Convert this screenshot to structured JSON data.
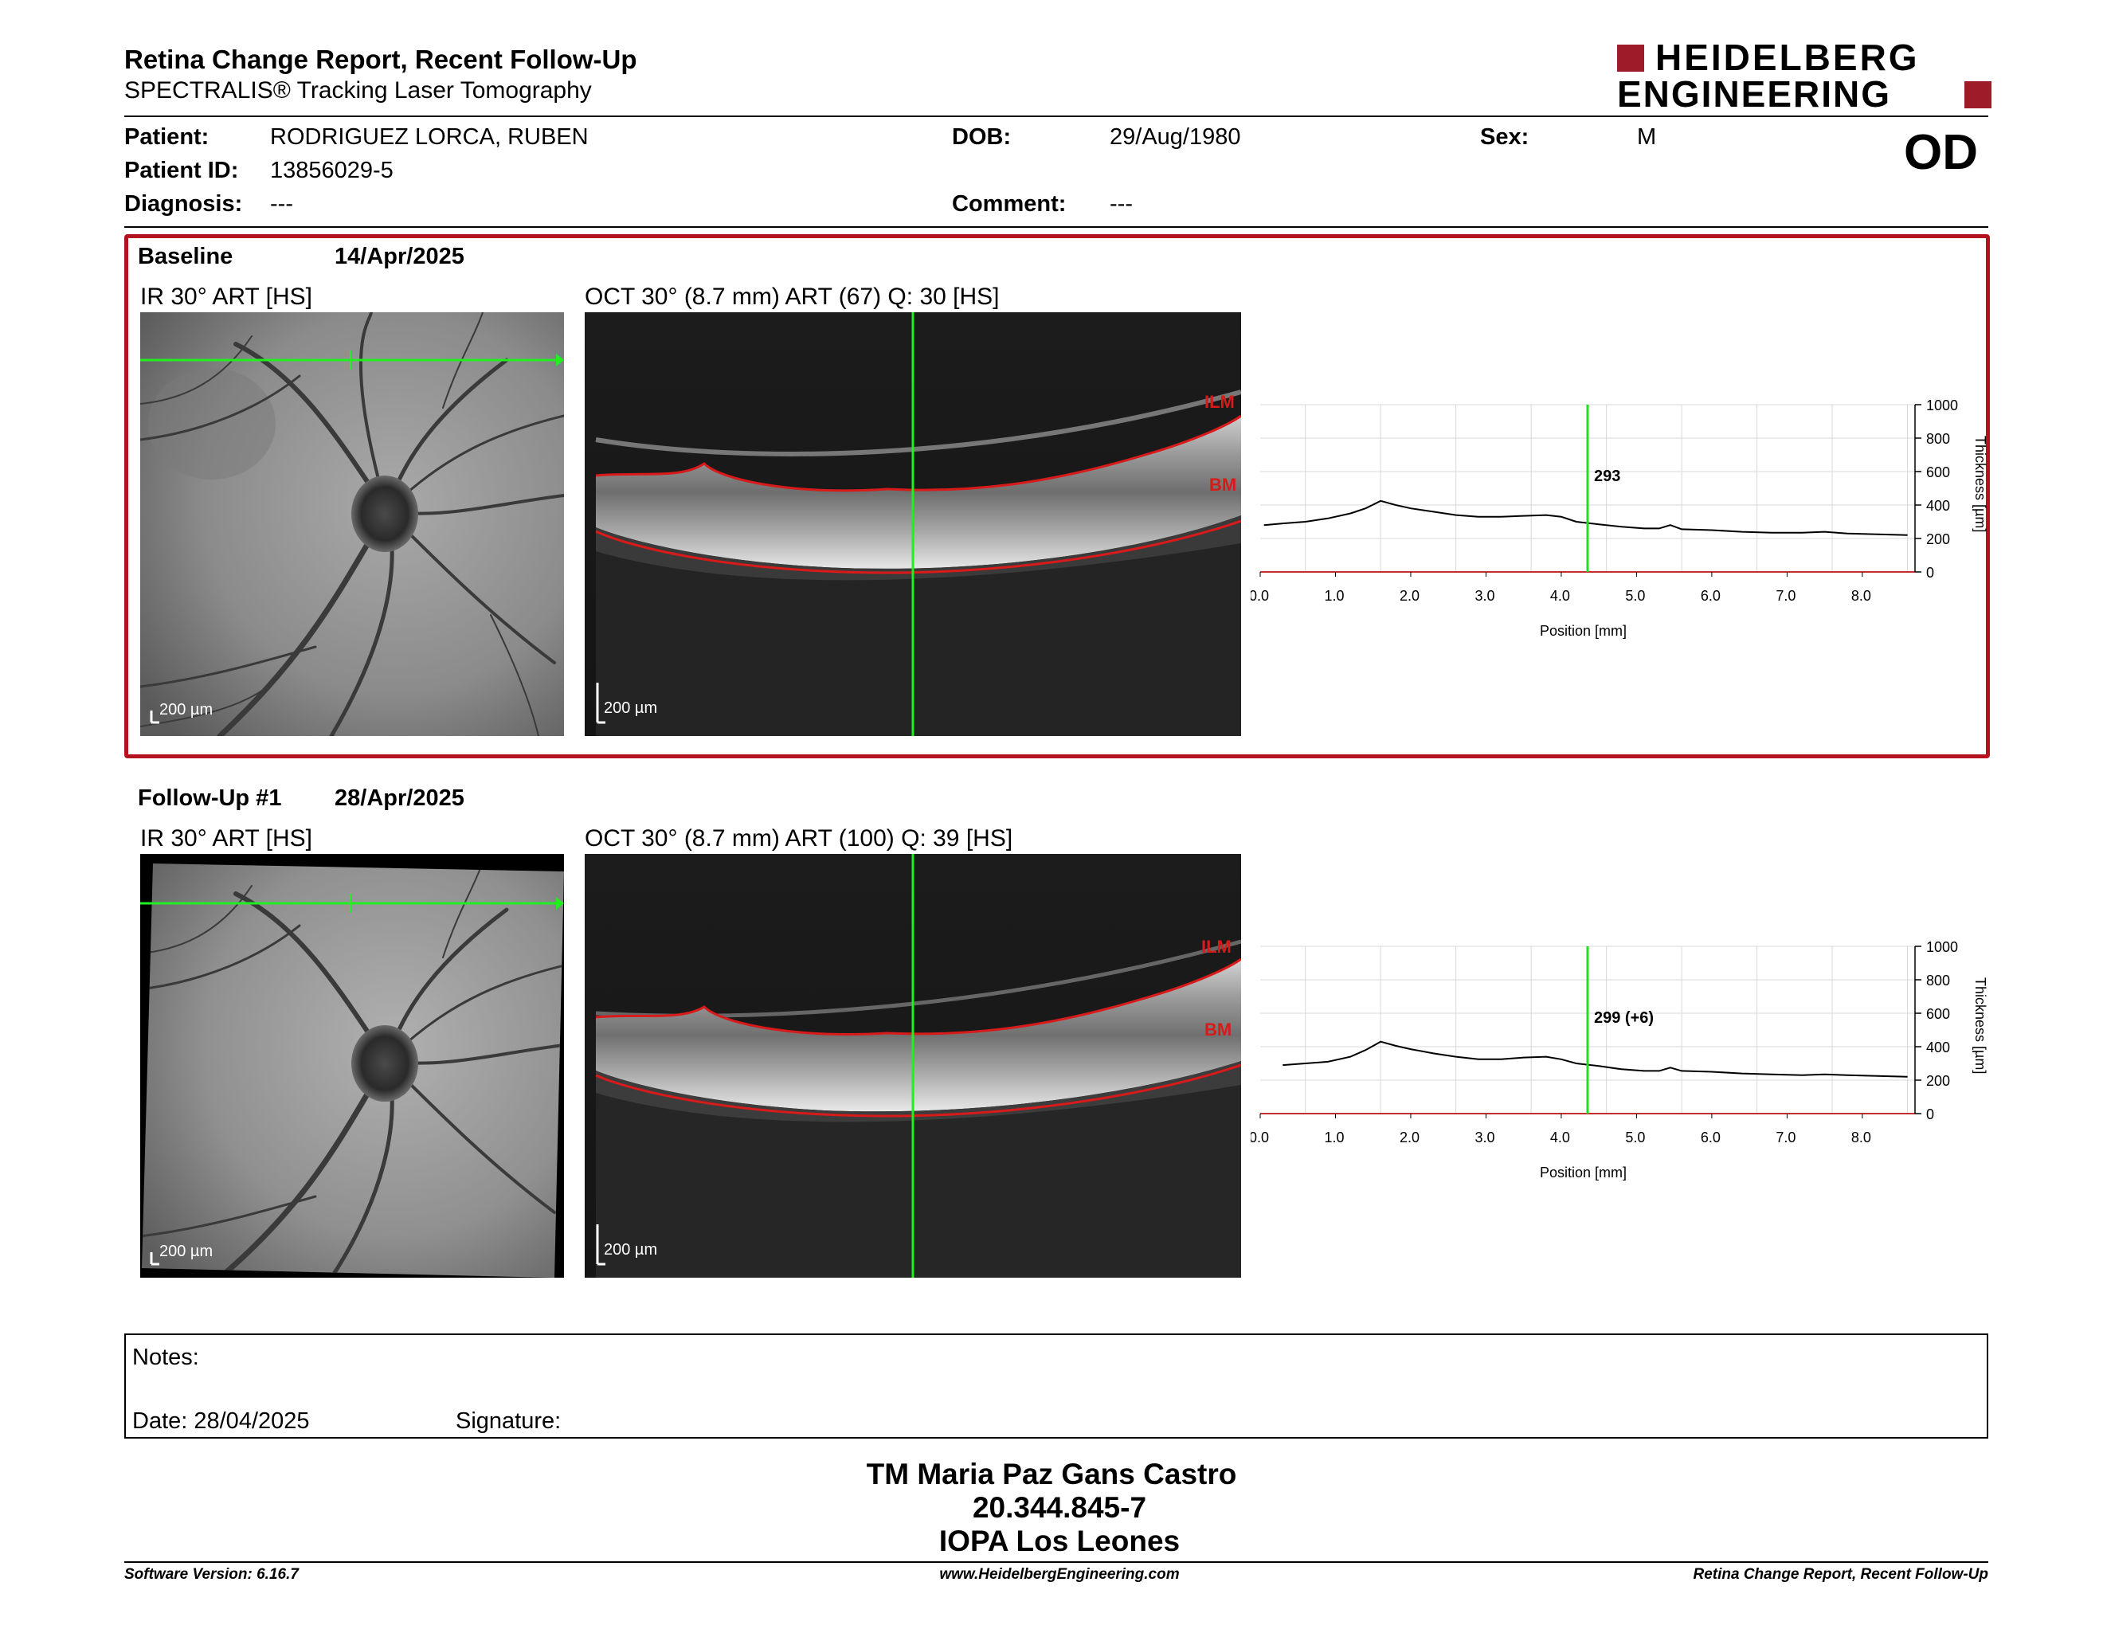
{
  "report": {
    "title": "Retina Change Report, Recent Follow-Up",
    "subtitle": "SPECTRALIS® Tracking Laser Tomography",
    "logo_line1": "HEIDELBERG",
    "logo_line2": "ENGINEERING",
    "brand_color": "#9e1b2a"
  },
  "patient": {
    "patient_label": "Patient:",
    "patient_value": "RODRIGUEZ LORCA, RUBEN",
    "id_label": "Patient ID:",
    "id_value": "13856029-5",
    "diagnosis_label": "Diagnosis:",
    "diagnosis_value": "---",
    "dob_label": "DOB:",
    "dob_value": "29/Aug/1980",
    "comment_label": "Comment:",
    "comment_value": "---",
    "sex_label": "Sex:",
    "sex_value": "M",
    "eye": "OD"
  },
  "baseline": {
    "label": "Baseline",
    "date": "14/Apr/2025",
    "ir_title": "IR 30° ART [HS]",
    "oct_title": "OCT 30° (8.7 mm) ART (67) Q: 30 [HS]",
    "ir_scale": "200 µm",
    "oct_scale": "200 µm",
    "ilm": "ILM",
    "bm": "BM",
    "highlight_color": "#b3121e"
  },
  "followup": {
    "label": "Follow-Up #1",
    "date": "28/Apr/2025",
    "ir_title": "IR 30° ART [HS]",
    "oct_title": "OCT 30° (8.7 mm) ART (100) Q: 39 [HS]",
    "ir_scale": "200 µm",
    "oct_scale": "200 µm",
    "ilm": "ILM",
    "bm": "BM"
  },
  "chart_data": [
    {
      "type": "line",
      "title": "",
      "xlabel": "Position [mm]",
      "ylabel": "Thickness [µm]",
      "xlim": [
        0,
        8.7
      ],
      "ylim": [
        0,
        1000
      ],
      "xticks": [
        "0.0",
        "1.0",
        "2.0",
        "3.0",
        "4.0",
        "5.0",
        "6.0",
        "7.0",
        "8.0"
      ],
      "yticks": [
        "1000",
        "800",
        "600",
        "400",
        "200",
        "0"
      ],
      "grid": true,
      "marker_x": 4.35,
      "marker_label": "293",
      "series": [
        {
          "x": [
            0.05,
            0.3,
            0.6,
            0.9,
            1.2,
            1.4,
            1.6,
            1.8,
            2.0,
            2.3,
            2.6,
            2.9,
            3.2,
            3.5,
            3.8,
            4.0,
            4.2,
            4.5,
            4.8,
            5.1,
            5.3,
            5.45,
            5.6,
            6.0,
            6.4,
            6.8,
            7.2,
            7.5,
            7.8,
            8.2,
            8.6
          ],
          "y": [
            280,
            290,
            300,
            320,
            350,
            380,
            425,
            400,
            380,
            360,
            340,
            330,
            330,
            335,
            340,
            330,
            300,
            285,
            270,
            260,
            260,
            280,
            255,
            250,
            240,
            235,
            235,
            240,
            230,
            225,
            220
          ],
          "color": "#000000"
        }
      ]
    },
    {
      "type": "line",
      "title": "",
      "xlabel": "Position [mm]",
      "ylabel": "Thickness [µm]",
      "xlim": [
        0,
        8.7
      ],
      "ylim": [
        0,
        1000
      ],
      "xticks": [
        "0.0",
        "1.0",
        "2.0",
        "3.0",
        "4.0",
        "5.0",
        "6.0",
        "7.0",
        "8.0"
      ],
      "yticks": [
        "1000",
        "800",
        "600",
        "400",
        "200",
        "0"
      ],
      "grid": true,
      "marker_x": 4.35,
      "marker_label": "299 (+6)",
      "series": [
        {
          "x": [
            0.3,
            0.6,
            0.9,
            1.2,
            1.4,
            1.6,
            1.8,
            2.0,
            2.3,
            2.6,
            2.9,
            3.2,
            3.5,
            3.8,
            4.0,
            4.2,
            4.5,
            4.8,
            5.1,
            5.3,
            5.45,
            5.6,
            6.0,
            6.4,
            6.8,
            7.2,
            7.5,
            7.8,
            8.2,
            8.6
          ],
          "y": [
            290,
            300,
            310,
            340,
            380,
            430,
            405,
            385,
            360,
            340,
            325,
            325,
            335,
            340,
            325,
            300,
            285,
            265,
            255,
            255,
            275,
            255,
            250,
            240,
            235,
            230,
            235,
            230,
            225,
            220
          ],
          "color": "#000000"
        }
      ]
    }
  ],
  "notes": {
    "notes_label": "Notes:",
    "date_label": "Date: 28/04/2025",
    "signature_label": "Signature:"
  },
  "signer": {
    "name": "TM Maria Paz Gans Castro",
    "id": "20.344.845-7",
    "institution": "IOPA Los Leones"
  },
  "footer": {
    "left": "Software Version: 6.16.7",
    "center": "www.HeidelbergEngineering.com",
    "right": "Retina Change Report, Recent Follow-Up"
  }
}
